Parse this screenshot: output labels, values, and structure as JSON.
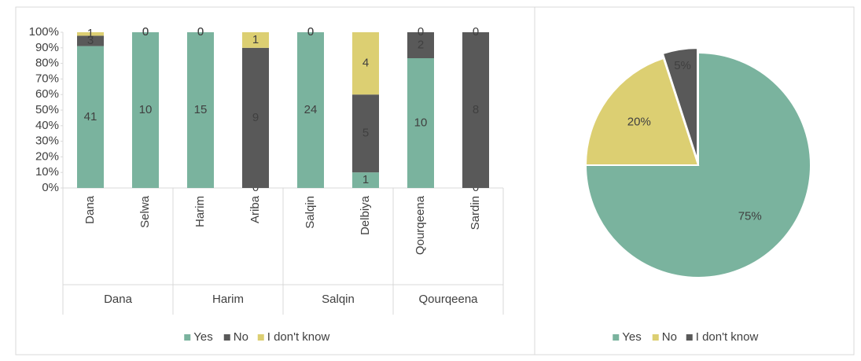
{
  "chart_data": [
    {
      "type": "bar",
      "stacked": "percent",
      "categories": [
        "Dana",
        "Selwa",
        "Harim",
        "Ariba",
        "Salqin",
        "Delbiya",
        "Qourqeena",
        "Sardin"
      ],
      "groups": [
        "Dana",
        "Harim",
        "Salqin",
        "Qourqeena"
      ],
      "series": [
        {
          "name": "Yes",
          "color": "#7ab39e",
          "values": [
            41,
            10,
            15,
            0,
            24,
            1,
            10,
            0
          ]
        },
        {
          "name": "No",
          "color": "#595959",
          "values": [
            3,
            0,
            0,
            9,
            0,
            5,
            2,
            8
          ]
        },
        {
          "name": "I don't know",
          "color": "#dccf72",
          "values": [
            1,
            0,
            0,
            1,
            0,
            4,
            0,
            0
          ]
        }
      ],
      "ylim": [
        0,
        100
      ],
      "yticks": [
        {
          "value": 0,
          "label": "0%"
        },
        {
          "value": 10,
          "label": "10%"
        },
        {
          "value": 20,
          "label": "20%"
        },
        {
          "value": 30,
          "label": "30%"
        },
        {
          "value": 40,
          "label": "40%"
        },
        {
          "value": 50,
          "label": "50%"
        },
        {
          "value": 60,
          "label": "60%"
        },
        {
          "value": 70,
          "label": "70%"
        },
        {
          "value": 80,
          "label": "80%"
        },
        {
          "value": 90,
          "label": "90%"
        },
        {
          "value": 100,
          "label": "100%"
        }
      ],
      "legend": "bottom"
    },
    {
      "type": "pie",
      "categories": [
        "Yes",
        "No",
        "I don't know"
      ],
      "values": [
        75,
        20,
        5
      ],
      "value_labels": [
        "75%",
        "20%",
        "5%"
      ],
      "colors": [
        "#7ab39e",
        "#dccf72",
        "#595959"
      ],
      "legend": "bottom"
    }
  ]
}
